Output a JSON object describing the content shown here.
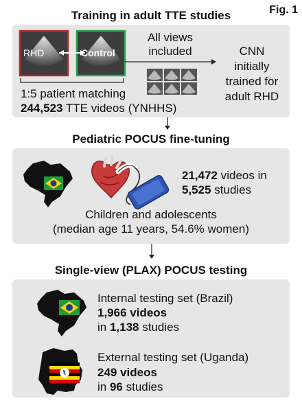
{
  "figure_label": "Fig. 1",
  "section1": {
    "heading": "Training in adult TTE studies",
    "rhd_label": "RHD",
    "control_label": "Control",
    "views_text_1": "All views",
    "views_text_2": "included",
    "cnn_line_1": "CNN",
    "cnn_line_2": "initially",
    "cnn_line_3": "trained for",
    "cnn_line_4": "adult RHD",
    "matching_text": "1:5 patient matching",
    "videos_count": "244,523",
    "videos_text": " TTE videos (YNHHS)"
  },
  "section2": {
    "heading": "Pediatric POCUS fine-tuning",
    "videos_count": "21,472",
    "videos_text": " videos in",
    "studies_count": "5,525",
    "studies_text": " studies",
    "population_line_1": "Children and adolescents",
    "population_line_2": "(median age 11 years, 54.6% women)"
  },
  "section3": {
    "heading": "Single-view (PLAX) POCUS testing",
    "internal_title": "Internal testing set (Brazil)",
    "internal_videos": "1,966 videos",
    "internal_studies_prefix": "in ",
    "internal_studies_count": "1,138",
    "internal_studies_suffix": " studies",
    "external_title": "External testing set (Uganda)",
    "external_videos": "249 videos",
    "external_studies_prefix": "in ",
    "external_studies_count": "96",
    "external_studies_suffix": " studies"
  },
  "colors": {
    "panel": "#e6e6e6",
    "rhd_border": "#b02a2a",
    "control_border": "#2fa34a",
    "brazil_green": "#1f9a3a",
    "brazil_yellow": "#f3d21a",
    "brazil_blue": "#1c3c8c"
  }
}
